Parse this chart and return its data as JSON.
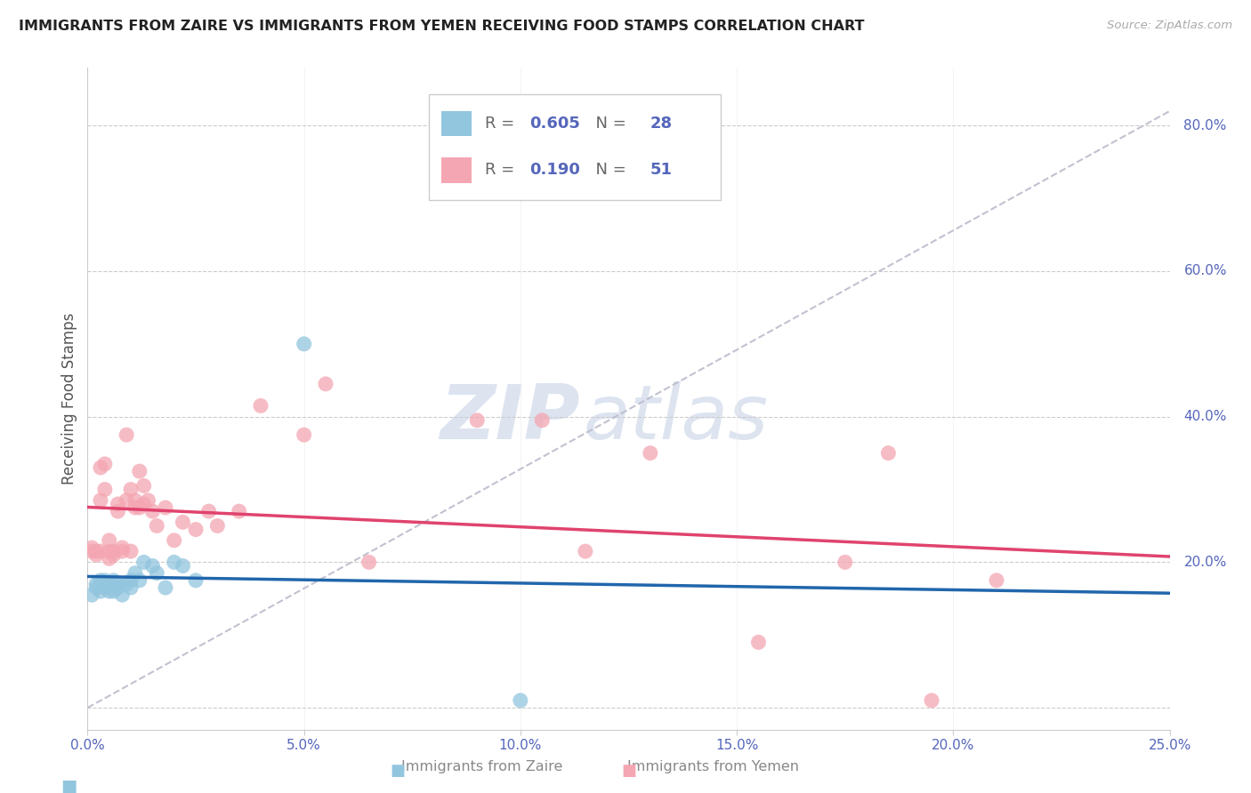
{
  "title": "IMMIGRANTS FROM ZAIRE VS IMMIGRANTS FROM YEMEN RECEIVING FOOD STAMPS CORRELATION CHART",
  "source": "Source: ZipAtlas.com",
  "ylabel": "Receiving Food Stamps",
  "legend_zaire": "Immigrants from Zaire",
  "legend_yemen": "Immigrants from Yemen",
  "R_zaire": 0.605,
  "N_zaire": 28,
  "R_yemen": 0.19,
  "N_yemen": 51,
  "xmin": 0.0,
  "xmax": 0.25,
  "ymin": -0.03,
  "ymax": 0.88,
  "right_ytick_vals": [
    0.2,
    0.4,
    0.6,
    0.8
  ],
  "right_yticklabels": [
    "20.0%",
    "40.0%",
    "60.0%",
    "80.0%"
  ],
  "color_zaire": "#92c5de",
  "color_yemen": "#f4a6b2",
  "line_color_zaire": "#2166ac",
  "line_color_yemen": "#e0436e",
  "ref_line_color": "#bbbbcc",
  "grid_color": "#cccccc",
  "title_color": "#222222",
  "axis_color": "#5566bb",
  "watermark_color": "#dde4f0",
  "zaire_x": [
    0.001,
    0.002,
    0.002,
    0.003,
    0.003,
    0.004,
    0.004,
    0.005,
    0.005,
    0.006,
    0.006,
    0.007,
    0.007,
    0.008,
    0.009,
    0.01,
    0.01,
    0.011,
    0.012,
    0.013,
    0.015,
    0.016,
    0.018,
    0.02,
    0.022,
    0.025,
    0.05,
    0.1
  ],
  "zaire_y": [
    0.155,
    0.165,
    0.17,
    0.16,
    0.175,
    0.165,
    0.175,
    0.16,
    0.17,
    0.175,
    0.16,
    0.17,
    0.165,
    0.155,
    0.17,
    0.175,
    0.165,
    0.185,
    0.175,
    0.2,
    0.195,
    0.185,
    0.165,
    0.2,
    0.195,
    0.175,
    0.5,
    0.01
  ],
  "yemen_x": [
    0.001,
    0.001,
    0.002,
    0.002,
    0.003,
    0.003,
    0.003,
    0.004,
    0.004,
    0.005,
    0.005,
    0.005,
    0.006,
    0.006,
    0.007,
    0.007,
    0.008,
    0.008,
    0.009,
    0.009,
    0.01,
    0.01,
    0.011,
    0.011,
    0.012,
    0.012,
    0.013,
    0.013,
    0.014,
    0.015,
    0.016,
    0.018,
    0.02,
    0.022,
    0.025,
    0.028,
    0.03,
    0.035,
    0.04,
    0.05,
    0.055,
    0.065,
    0.09,
    0.105,
    0.115,
    0.13,
    0.155,
    0.175,
    0.185,
    0.195,
    0.21
  ],
  "yemen_y": [
    0.215,
    0.22,
    0.21,
    0.215,
    0.33,
    0.285,
    0.215,
    0.335,
    0.3,
    0.215,
    0.23,
    0.205,
    0.215,
    0.21,
    0.28,
    0.27,
    0.22,
    0.215,
    0.375,
    0.285,
    0.215,
    0.3,
    0.285,
    0.275,
    0.325,
    0.275,
    0.305,
    0.28,
    0.285,
    0.27,
    0.25,
    0.275,
    0.23,
    0.255,
    0.245,
    0.27,
    0.25,
    0.27,
    0.415,
    0.375,
    0.445,
    0.2,
    0.395,
    0.395,
    0.215,
    0.35,
    0.09,
    0.2,
    0.35,
    0.01,
    0.175
  ]
}
